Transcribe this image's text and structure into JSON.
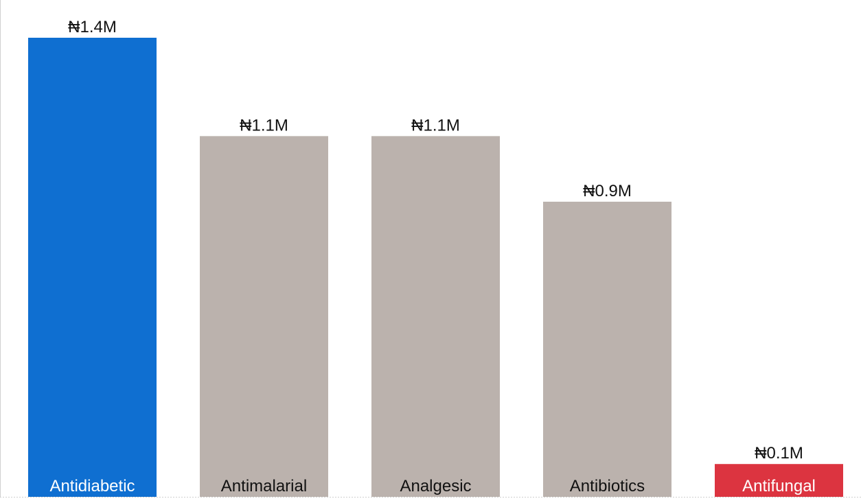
{
  "chart_data": {
    "type": "bar",
    "title": "",
    "xlabel": "",
    "ylabel": "",
    "categories": [
      "Antidiabetic",
      "Antimalarial",
      "Analgesic",
      "Antibiotics",
      "Antifungal"
    ],
    "values": [
      1.4,
      1.1,
      1.1,
      0.9,
      0.1
    ],
    "value_labels": [
      "₦1.4M",
      "₦1.1M",
      "₦1.1M",
      "₦0.9M",
      "₦0.1M"
    ],
    "units": "₦M",
    "bar_colors": [
      "#0f6fd1",
      "#bbb2ad",
      "#bbb2ad",
      "#bbb2ad",
      "#dc3440"
    ],
    "category_label_colors": [
      "#ffffff",
      "#111111",
      "#111111",
      "#111111",
      "#ffffff"
    ],
    "ylim": [
      0,
      1.4
    ],
    "grid": false,
    "legend": "none"
  }
}
